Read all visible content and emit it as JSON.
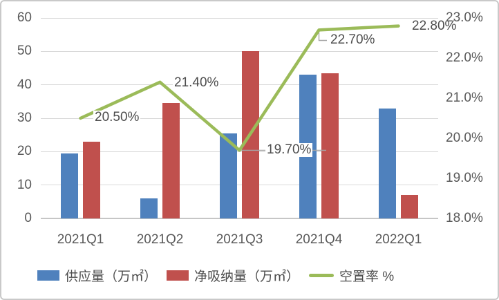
{
  "chart_data": {
    "type": "combo_bar_line",
    "title": "",
    "categories": [
      "2021Q1",
      "2021Q2",
      "2021Q3",
      "2021Q4",
      "2022Q1"
    ],
    "series": [
      {
        "name": "供应量（万㎡）",
        "chart_type": "bar",
        "axis": "left",
        "color": "#4F81BD",
        "values": [
          19.5,
          6,
          25.5,
          43,
          33
        ]
      },
      {
        "name": "净吸纳量（万㎡）",
        "chart_type": "bar",
        "axis": "left",
        "color": "#C0504D",
        "values": [
          23,
          34.5,
          50,
          43.5,
          7
        ]
      },
      {
        "name": "空置率 %",
        "chart_type": "line",
        "axis": "right",
        "color": "#9BBB59",
        "values": [
          20.5,
          21.4,
          19.7,
          22.7,
          22.8
        ],
        "point_labels": [
          "20.50%",
          "21.40%",
          "19.70%",
          "22.70%",
          "22.80%"
        ]
      }
    ],
    "left_axis": {
      "min": 0,
      "max": 60,
      "step": 10,
      "tick_labels": [
        "60",
        "50",
        "40",
        "30",
        "20",
        "10",
        "0"
      ]
    },
    "right_axis": {
      "min": 18,
      "max": 23,
      "step": 1,
      "tick_labels": [
        "23.0%",
        "22.0%",
        "21.0%",
        "20.0%",
        "19.0%",
        "18.0%"
      ]
    },
    "grid": "horizontal",
    "legend_position": "bottom"
  },
  "legend": {
    "supply_label": "供应量（万㎡）",
    "absorption_label": "净吸纳量（万㎡）",
    "vacancy_label": "空置率 %"
  },
  "colors": {
    "supply_bar": "#4F81BD",
    "absorption_bar": "#C0504D",
    "vacancy_line": "#9BBB59",
    "gridline": "#D9D9D9",
    "axis_line": "#C6C6C6",
    "text": "#595959",
    "leader_line": "#A6A6A6",
    "border": "#C9C9C9"
  }
}
